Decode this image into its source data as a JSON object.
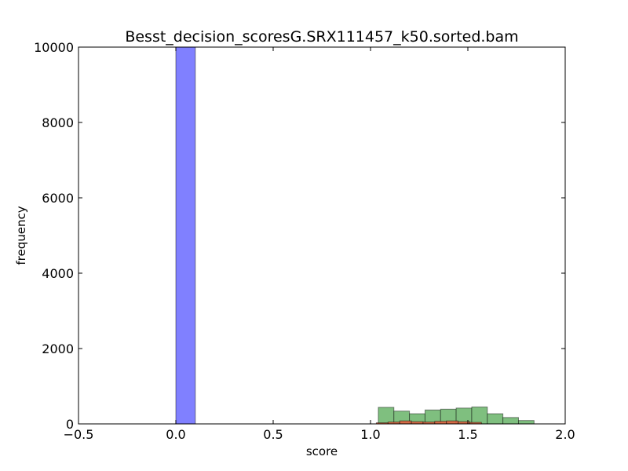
{
  "chart_data": {
    "type": "bar",
    "title": "Besst_decision_scoresG.SRX111457_k50.sorted.bam",
    "xlabel": "score",
    "ylabel": "frequency",
    "xlim": [
      -0.5,
      2.0
    ],
    "ylim": [
      0,
      10000
    ],
    "xticks": [
      -0.5,
      0.0,
      0.5,
      1.0,
      1.5,
      2.0
    ],
    "xtick_labels": [
      "−0.5",
      "0.0",
      "0.5",
      "1.0",
      "1.5",
      "2.0"
    ],
    "yticks": [
      0,
      2000,
      4000,
      6000,
      8000,
      10000
    ],
    "ytick_labels": [
      "0",
      "2000",
      "4000",
      "6000",
      "8000",
      "10000"
    ],
    "grid": false,
    "legend": "none",
    "series": [
      {
        "color": "#8080ff",
        "opacity": 1.0,
        "bins": [
          {
            "x0": 0.0,
            "x1": 0.1,
            "value": 10000
          }
        ]
      },
      {
        "color": "#7fbf7f",
        "opacity": 1.0,
        "bins": [
          {
            "x0": 1.04,
            "x1": 1.12,
            "value": 440
          },
          {
            "x0": 1.12,
            "x1": 1.2,
            "value": 340
          },
          {
            "x0": 1.2,
            "x1": 1.28,
            "value": 270
          },
          {
            "x0": 1.28,
            "x1": 1.36,
            "value": 370
          },
          {
            "x0": 1.36,
            "x1": 1.44,
            "value": 390
          },
          {
            "x0": 1.44,
            "x1": 1.52,
            "value": 420
          },
          {
            "x0": 1.52,
            "x1": 1.6,
            "value": 450
          },
          {
            "x0": 1.6,
            "x1": 1.68,
            "value": 270
          },
          {
            "x0": 1.68,
            "x1": 1.76,
            "value": 170
          },
          {
            "x0": 1.76,
            "x1": 1.84,
            "value": 90
          }
        ]
      },
      {
        "color": "#e06040",
        "opacity": 0.9,
        "bins": [
          {
            "x0": 1.03,
            "x1": 1.09,
            "value": 30
          },
          {
            "x0": 1.09,
            "x1": 1.15,
            "value": 50
          },
          {
            "x0": 1.15,
            "x1": 1.21,
            "value": 80
          },
          {
            "x0": 1.21,
            "x1": 1.27,
            "value": 60
          },
          {
            "x0": 1.27,
            "x1": 1.33,
            "value": 50
          },
          {
            "x0": 1.33,
            "x1": 1.39,
            "value": 70
          },
          {
            "x0": 1.39,
            "x1": 1.45,
            "value": 80
          },
          {
            "x0": 1.45,
            "x1": 1.51,
            "value": 60
          },
          {
            "x0": 1.51,
            "x1": 1.57,
            "value": 40
          }
        ]
      }
    ]
  }
}
